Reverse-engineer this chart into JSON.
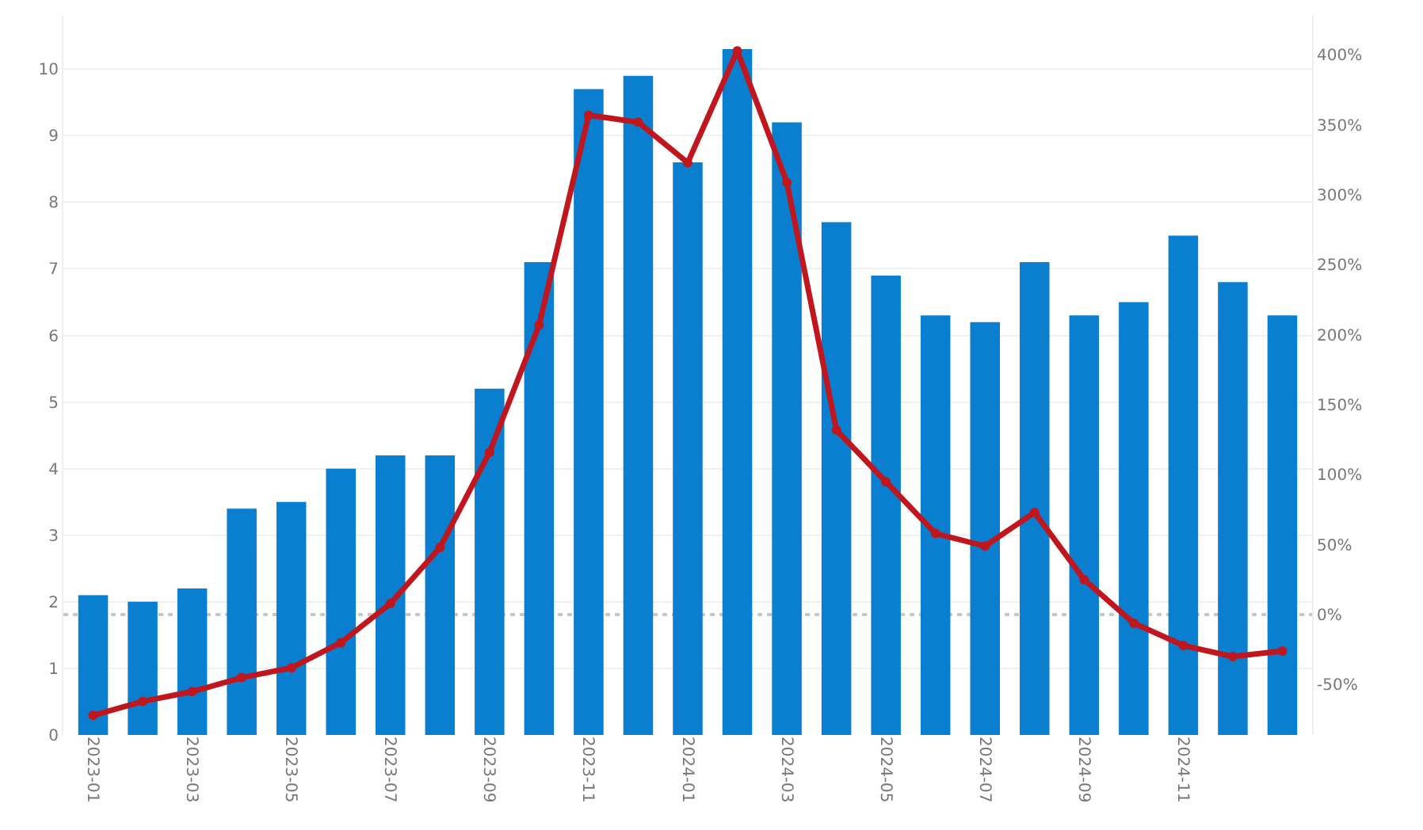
{
  "chart_data": {
    "type": "bar",
    "categories": [
      "2023-01",
      null,
      "2023-03",
      null,
      "2023-05",
      null,
      "2023-07",
      null,
      "2023-09",
      null,
      "2023-11",
      null,
      "2024-01",
      null,
      "2024-03",
      null,
      "2024-05",
      null,
      "2024-07",
      null,
      "2024-09",
      null,
      "2024-11",
      null,
      null
    ],
    "series": [
      {
        "color": "#0a7fd0",
        "values": [
          2.1,
          2.0,
          2.2,
          3.4,
          3.5,
          4.0,
          4.2,
          4.2,
          5.2,
          7.1,
          9.7,
          9.9,
          8.6,
          10.3,
          9.2,
          7.7,
          6.9,
          6.3,
          6.2,
          7.1,
          6.3,
          6.5,
          7.5,
          6.8,
          6.3
        ]
      },
      {
        "type": "line",
        "axis": "y2",
        "color": "#c0161e",
        "marker": "circle",
        "line_style": "solid",
        "values": [
          -72,
          -62,
          -55,
          -45,
          -38,
          -20,
          8,
          48,
          116,
          207,
          357,
          352,
          323,
          403,
          309,
          132,
          95,
          58,
          49,
          73,
          25,
          -6,
          -22,
          -30,
          -26
        ]
      }
    ],
    "ylim": [
      0,
      10.8
    ],
    "yticks": [
      0,
      1,
      2,
      3,
      4,
      5,
      6,
      7,
      8,
      9,
      10
    ],
    "y2lim": [
      -86,
      428
    ],
    "y2ticks": [
      {
        "value": -50,
        "label": "-50%"
      },
      {
        "value": 0,
        "label": "0%"
      },
      {
        "value": 50,
        "label": "50%"
      },
      {
        "value": 100,
        "label": "100%"
      },
      {
        "value": 150,
        "label": "150%"
      },
      {
        "value": 200,
        "label": "200%"
      },
      {
        "value": 250,
        "label": "250%"
      },
      {
        "value": 300,
        "label": "300%"
      },
      {
        "value": 350,
        "label": "350%"
      },
      {
        "value": 400,
        "label": "400%"
      }
    ],
    "ref_lines": [
      {
        "axis": "y2",
        "value": 0,
        "color": "#c8c8c8",
        "line_style": "dotted"
      }
    ],
    "grid": "y"
  }
}
